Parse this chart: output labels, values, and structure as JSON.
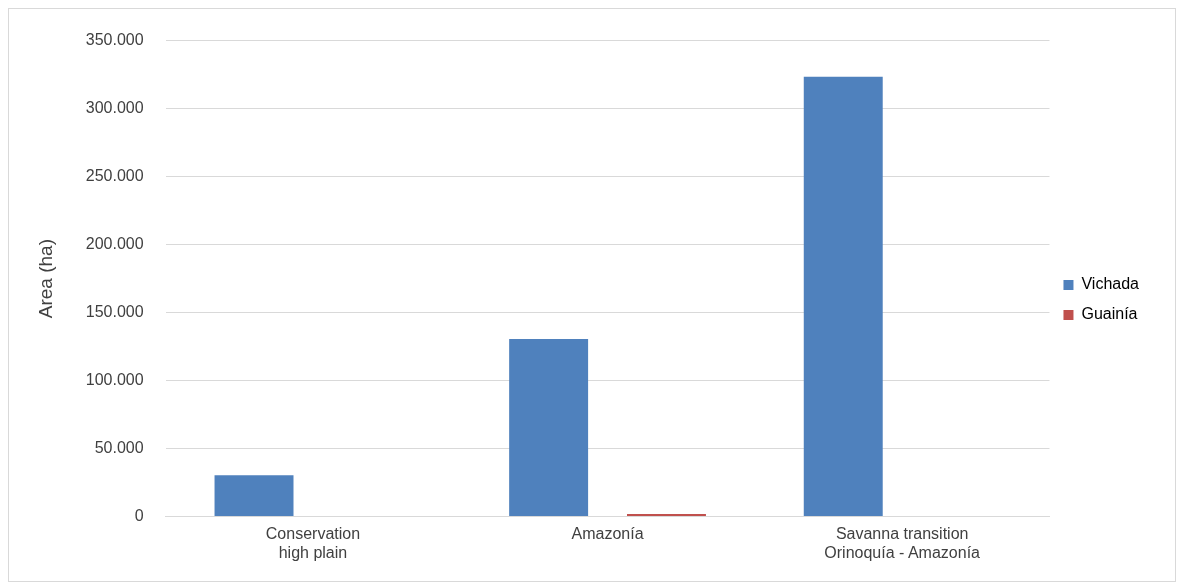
{
  "chart_data": {
    "type": "bar",
    "ylabel": "Area (ha)",
    "categories": [
      "Conservation\nhigh plain",
      "Amazonía",
      "Savanna transition\nOrinoquía - Amazonía"
    ],
    "series": [
      {
        "name": "Vichada",
        "color": "#4f81bd",
        "values": [
          30400,
          130600,
          323400
        ]
      },
      {
        "name": "Guainía",
        "color": "#c0504d",
        "values": [
          0,
          2000,
          0
        ]
      }
    ],
    "ylim": [
      0,
      350000
    ],
    "yticks": [
      {
        "value": 0,
        "label": "0"
      },
      {
        "value": 50000,
        "label": "50.000"
      },
      {
        "value": 100000,
        "label": "100.000"
      },
      {
        "value": 150000,
        "label": "150.000"
      },
      {
        "value": 200000,
        "label": "200.000"
      },
      {
        "value": 250000,
        "label": "250.000"
      },
      {
        "value": 300000,
        "label": "300.000"
      },
      {
        "value": 350000,
        "label": "350.000"
      }
    ],
    "grid": "y",
    "legend": "right"
  }
}
